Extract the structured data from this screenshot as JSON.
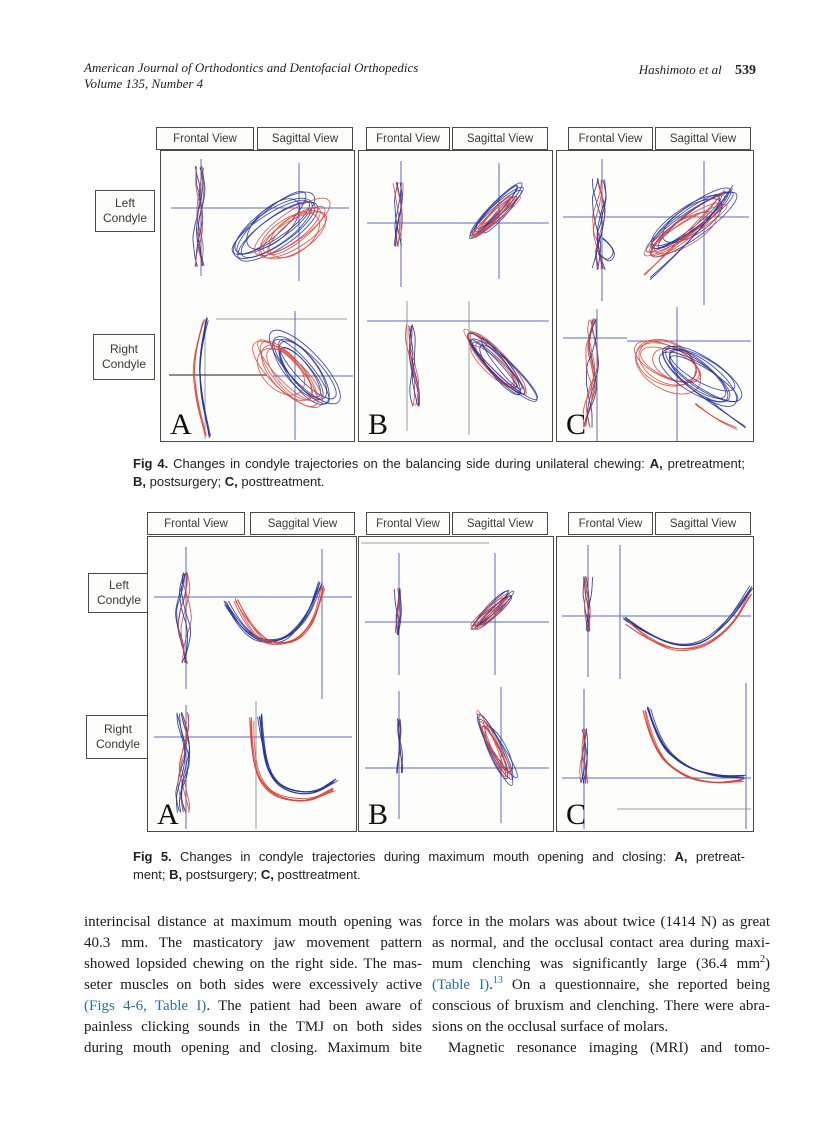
{
  "header": {
    "journal_line1": "American Journal of Orthodontics and Dentofacial Orthopedics",
    "journal_line2": "Volume 135, Number 4",
    "authors": "Hashimoto et al",
    "page_number": "539"
  },
  "colors": {
    "trace_blue": "#26339b",
    "trace_red": "#d9453a",
    "axis_blue": "#5a6ab8",
    "axis_gray": "#9a9a9a",
    "axis_dark": "#4a4a4a",
    "link_blue": "#2a6f9e",
    "panel_border": "#4a4a4a"
  },
  "figure4": {
    "row_labels": [
      {
        "line1": "Left",
        "line2": "Condyle"
      },
      {
        "line1": "Right",
        "line2": "Condyle"
      }
    ],
    "panels": [
      {
        "letter": "A",
        "frontal_label": "Frontal View",
        "sagittal_label": "Sagittal View"
      },
      {
        "letter": "B",
        "frontal_label": "Frontal View",
        "sagittal_label": "Sagittal View"
      },
      {
        "letter": "C",
        "frontal_label": "Frontal View",
        "sagittal_label": "Sagittal View"
      }
    ],
    "caption_lines": [
      {
        "s": [
          {
            "t": "Fig 4.",
            "b": 1
          },
          {
            "t": " Changes in condyle trajectories on the balancing side during unilateral chewing: "
          },
          {
            "t": "A,",
            "b": 1
          },
          {
            "t": " pretreatment;"
          }
        ]
      },
      {
        "j": 0,
        "s": [
          {
            "t": "B,",
            "b": 1
          },
          {
            "t": " postsurgery; "
          },
          {
            "t": "C,",
            "b": 1
          },
          {
            "t": " posttreatment."
          }
        ]
      }
    ]
  },
  "figure5": {
    "row_labels": [
      {
        "line1": "Left",
        "line2": "Condyle"
      },
      {
        "line1": "Right",
        "line2": "Condyle"
      }
    ],
    "panels": [
      {
        "letter": "A",
        "frontal_label": "Frontal View",
        "sagittal_label": "Saggital View"
      },
      {
        "letter": "B",
        "frontal_label": "Frontal View",
        "sagittal_label": "Sagittal View"
      },
      {
        "letter": "C",
        "frontal_label": "Frontal View",
        "sagittal_label": "Sagittal View"
      }
    ],
    "caption_lines": [
      {
        "s": [
          {
            "t": "Fig 5.",
            "b": 1
          },
          {
            "t": " Changes in condyle trajectories during maximum mouth opening and closing: "
          },
          {
            "t": "A,",
            "b": 1
          },
          {
            "t": " pretreat-"
          }
        ]
      },
      {
        "j": 0,
        "s": [
          {
            "t": "ment; "
          },
          {
            "t": "B,",
            "b": 1
          },
          {
            "t": " postsurgery; "
          },
          {
            "t": "C,",
            "b": 1
          },
          {
            "t": " posttreatment."
          }
        ]
      }
    ]
  },
  "body": {
    "left_lines": [
      {
        "s": [
          {
            "t": "interincisal distance at maximum mouth opening was"
          }
        ]
      },
      {
        "s": [
          {
            "t": "40.3 mm. The masticatory jaw movement pattern"
          }
        ]
      },
      {
        "s": [
          {
            "t": "showed lopsided chewing on the right side. The mas-"
          }
        ]
      },
      {
        "s": [
          {
            "t": "seter muscles on both sides were excessively active"
          }
        ]
      },
      {
        "s": [
          {
            "t": "(Figs 4-6, Table I)",
            "link": 1
          },
          {
            "t": ". The patient had been aware of"
          }
        ]
      },
      {
        "s": [
          {
            "t": "painless clicking sounds in the TMJ on both sides"
          }
        ]
      },
      {
        "s": [
          {
            "t": "during mouth opening and closing. Maximum bite"
          }
        ]
      }
    ],
    "right_lines": [
      {
        "s": [
          {
            "t": "force in the molars was about twice (1414 N) as great"
          }
        ]
      },
      {
        "s": [
          {
            "t": "as normal, and the occlusal contact area during maxi-"
          }
        ]
      },
      {
        "s": [
          {
            "t": "mum clenching was significantly large (36.4 mm"
          },
          {
            "t": "2",
            "sup": 1
          },
          {
            "t": ")"
          }
        ]
      },
      {
        "s": [
          {
            "t": "(Table I)",
            "link": 1
          },
          {
            "t": "."
          },
          {
            "t": "13",
            "sup": 1,
            "link": 1
          },
          {
            "t": " On a questionnaire, she reported being"
          }
        ]
      },
      {
        "s": [
          {
            "t": "conscious of bruxism and clenching. There were abra-"
          }
        ]
      },
      {
        "j": 0,
        "s": [
          {
            "t": "sions on the occlusal surface of molars."
          }
        ]
      },
      {
        "ind": 1,
        "s": [
          {
            "t": "Magnetic resonance imaging (MRI) and tomo-"
          }
        ]
      }
    ]
  }
}
